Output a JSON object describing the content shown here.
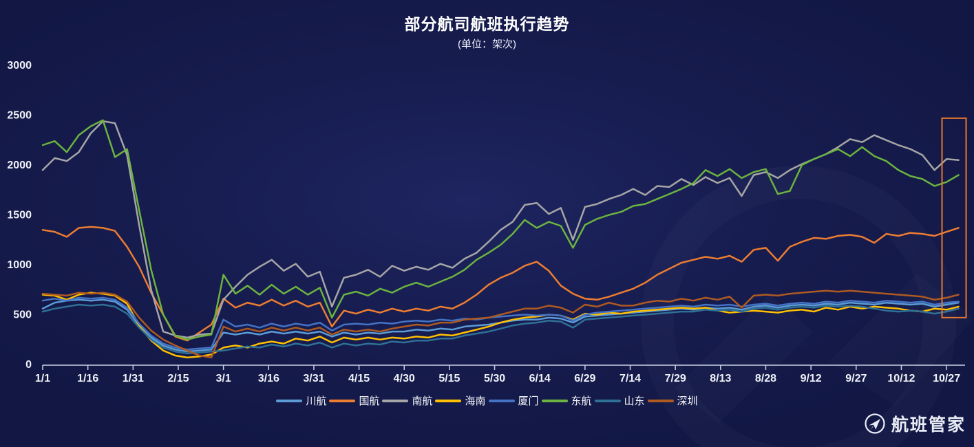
{
  "title": {
    "text": "部分航司航班执行趋势",
    "subtitle": "(单位：架次)"
  },
  "brand": {
    "name": "航班管家"
  },
  "chart_data": {
    "type": "line",
    "title": "部分航司航班执行趋势",
    "unit_label": "架次",
    "ylim": [
      0,
      3000
    ],
    "grid": false,
    "legend_position": "bottom",
    "y_ticks": [
      0,
      500,
      1000,
      1500,
      2000,
      2500,
      3000
    ],
    "x_ticks": [
      {
        "label": "1/1",
        "day": 0
      },
      {
        "label": "1/16",
        "day": 15
      },
      {
        "label": "1/31",
        "day": 30
      },
      {
        "label": "2/15",
        "day": 45
      },
      {
        "label": "3/1",
        "day": 60
      },
      {
        "label": "3/16",
        "day": 75
      },
      {
        "label": "3/31",
        "day": 90
      },
      {
        "label": "4/15",
        "day": 105
      },
      {
        "label": "4/30",
        "day": 120
      },
      {
        "label": "5/15",
        "day": 135
      },
      {
        "label": "5/30",
        "day": 150
      },
      {
        "label": "6/14",
        "day": 165
      },
      {
        "label": "6/29",
        "day": 180
      },
      {
        "label": "7/14",
        "day": 195
      },
      {
        "label": "7/29",
        "day": 210
      },
      {
        "label": "8/13",
        "day": 225
      },
      {
        "label": "8/28",
        "day": 240
      },
      {
        "label": "9/12",
        "day": 255
      },
      {
        "label": "9/27",
        "day": 270
      },
      {
        "label": "10/12",
        "day": 285
      },
      {
        "label": "10/27",
        "day": 300
      }
    ],
    "x_days": [
      0,
      4,
      8,
      12,
      16,
      20,
      24,
      28,
      32,
      36,
      40,
      44,
      48,
      52,
      56,
      60,
      64,
      68,
      72,
      76,
      80,
      84,
      88,
      92,
      96,
      100,
      104,
      108,
      112,
      116,
      120,
      124,
      128,
      132,
      136,
      140,
      144,
      148,
      152,
      156,
      160,
      164,
      168,
      172,
      176,
      180,
      184,
      188,
      192,
      196,
      200,
      204,
      208,
      212,
      216,
      220,
      224,
      228,
      232,
      236,
      240,
      244,
      248,
      252,
      256,
      260,
      264,
      268,
      272,
      276,
      280,
      284,
      288,
      292,
      296,
      300,
      304
    ],
    "highlight_box": {
      "x0_day": 298.5,
      "x1_day": 306.5,
      "y0": 470,
      "y1": 2470,
      "color": "#E8772E"
    },
    "series": [
      {
        "key": "chuanhang",
        "name": "川航",
        "color": "#5B9BD5",
        "values": [
          560,
          620,
          640,
          650,
          640,
          650,
          630,
          550,
          390,
          270,
          190,
          150,
          130,
          140,
          150,
          320,
          300,
          320,
          300,
          330,
          310,
          330,
          310,
          330,
          280,
          320,
          300,
          320,
          310,
          330,
          330,
          350,
          340,
          360,
          350,
          380,
          390,
          400,
          420,
          440,
          450,
          450,
          470,
          460,
          420,
          480,
          490,
          500,
          510,
          520,
          530,
          540,
          550,
          560,
          550,
          570,
          560,
          570,
          550,
          580,
          590,
          570,
          590,
          600,
          590,
          610,
          600,
          620,
          610,
          600,
          620,
          610,
          600,
          610,
          580,
          600,
          620
        ]
      },
      {
        "key": "guohang",
        "name": "国航",
        "color": "#ED7D31",
        "values": [
          1350,
          1330,
          1280,
          1370,
          1380,
          1370,
          1340,
          1180,
          980,
          720,
          500,
          280,
          240,
          320,
          400,
          660,
          570,
          620,
          590,
          650,
          590,
          640,
          580,
          620,
          380,
          540,
          510,
          550,
          520,
          560,
          530,
          560,
          540,
          580,
          560,
          620,
          700,
          800,
          870,
          920,
          990,
          1030,
          940,
          790,
          710,
          660,
          650,
          680,
          720,
          760,
          820,
          900,
          960,
          1020,
          1050,
          1080,
          1060,
          1090,
          1030,
          1150,
          1170,
          1040,
          1180,
          1230,
          1270,
          1260,
          1290,
          1300,
          1280,
          1220,
          1310,
          1290,
          1320,
          1310,
          1290,
          1330,
          1370
        ]
      },
      {
        "key": "nanhang",
        "name": "南航",
        "color": "#A6A6A6",
        "values": [
          1950,
          2070,
          2040,
          2130,
          2320,
          2440,
          2420,
          2100,
          1400,
          750,
          330,
          290,
          270,
          300,
          310,
          650,
          780,
          900,
          980,
          1050,
          940,
          1010,
          880,
          930,
          580,
          870,
          900,
          950,
          880,
          990,
          940,
          980,
          950,
          1010,
          970,
          1060,
          1120,
          1230,
          1350,
          1430,
          1600,
          1620,
          1510,
          1570,
          1250,
          1580,
          1610,
          1660,
          1700,
          1760,
          1700,
          1790,
          1780,
          1860,
          1800,
          1880,
          1820,
          1870,
          1690,
          1900,
          1930,
          1870,
          1950,
          2010,
          2060,
          2110,
          2180,
          2260,
          2230,
          2300,
          2250,
          2200,
          2160,
          2100,
          1950,
          2060,
          2050
        ]
      },
      {
        "key": "hainan",
        "name": "海南",
        "color": "#FFC000",
        "values": [
          700,
          690,
          650,
          700,
          720,
          710,
          690,
          610,
          390,
          240,
          140,
          90,
          70,
          80,
          100,
          170,
          190,
          170,
          210,
          230,
          210,
          260,
          240,
          280,
          220,
          270,
          250,
          270,
          250,
          270,
          260,
          280,
          270,
          300,
          290,
          320,
          350,
          380,
          420,
          450,
          470,
          480,
          500,
          490,
          450,
          510,
          500,
          520,
          510,
          530,
          540,
          550,
          560,
          570,
          560,
          570,
          540,
          520,
          530,
          540,
          530,
          520,
          540,
          550,
          530,
          570,
          550,
          580,
          560,
          580,
          570,
          560,
          540,
          530,
          560,
          550,
          580
        ]
      },
      {
        "key": "xiamen",
        "name": "厦门",
        "color": "#4472C4",
        "values": [
          640,
          660,
          640,
          670,
          660,
          670,
          650,
          570,
          410,
          290,
          210,
          170,
          150,
          160,
          170,
          450,
          380,
          400,
          370,
          410,
          380,
          410,
          390,
          420,
          340,
          400,
          410,
          400,
          420,
          410,
          430,
          440,
          430,
          450,
          440,
          460,
          450,
          470,
          480,
          490,
          500,
          490,
          500,
          490,
          440,
          500,
          520,
          530,
          540,
          550,
          560,
          570,
          580,
          590,
          580,
          600,
          590,
          600,
          580,
          600,
          610,
          590,
          610,
          620,
          610,
          630,
          620,
          640,
          630,
          620,
          640,
          630,
          620,
          630,
          600,
          620,
          630
        ]
      },
      {
        "key": "donghang",
        "name": "东航",
        "color": "#6CB33F",
        "values": [
          2200,
          2240,
          2130,
          2300,
          2390,
          2450,
          2080,
          2160,
          1550,
          950,
          500,
          290,
          250,
          280,
          300,
          900,
          710,
          790,
          700,
          800,
          710,
          780,
          700,
          770,
          470,
          700,
          730,
          690,
          760,
          720,
          780,
          820,
          780,
          830,
          880,
          950,
          1050,
          1120,
          1200,
          1310,
          1450,
          1370,
          1430,
          1390,
          1170,
          1400,
          1460,
          1500,
          1530,
          1590,
          1610,
          1660,
          1710,
          1760,
          1820,
          1950,
          1890,
          1960,
          1870,
          1930,
          1960,
          1710,
          1740,
          2000,
          2060,
          2110,
          2160,
          2090,
          2180,
          2090,
          2040,
          1950,
          1890,
          1860,
          1790,
          1830,
          1900
        ]
      },
      {
        "key": "shandong",
        "name": "山东",
        "color": "#2E7096",
        "values": [
          530,
          560,
          580,
          600,
          590,
          600,
          580,
          510,
          370,
          250,
          170,
          130,
          110,
          120,
          130,
          140,
          160,
          180,
          170,
          200,
          180,
          210,
          190,
          220,
          170,
          210,
          190,
          210,
          200,
          230,
          220,
          240,
          240,
          260,
          260,
          290,
          310,
          330,
          360,
          390,
          410,
          420,
          440,
          430,
          370,
          450,
          460,
          470,
          480,
          490,
          500,
          510,
          520,
          530,
          530,
          550,
          540,
          550,
          530,
          560,
          570,
          550,
          570,
          580,
          570,
          590,
          580,
          590,
          580,
          560,
          540,
          530,
          540,
          530,
          510,
          530,
          560
        ]
      },
      {
        "key": "shenzhen",
        "name": "深圳",
        "color": "#AE5A21",
        "values": [
          710,
          700,
          690,
          720,
          710,
          720,
          700,
          630,
          470,
          340,
          250,
          190,
          140,
          90,
          70,
          380,
          330,
          360,
          330,
          370,
          340,
          370,
          340,
          370,
          300,
          350,
          330,
          350,
          330,
          360,
          380,
          400,
          390,
          420,
          420,
          450,
          460,
          470,
          500,
          530,
          560,
          560,
          590,
          570,
          520,
          600,
          580,
          620,
          590,
          590,
          620,
          640,
          630,
          660,
          640,
          670,
          650,
          680,
          570,
          690,
          700,
          690,
          710,
          720,
          730,
          740,
          730,
          740,
          730,
          720,
          710,
          700,
          690,
          680,
          650,
          670,
          700
        ]
      }
    ]
  }
}
